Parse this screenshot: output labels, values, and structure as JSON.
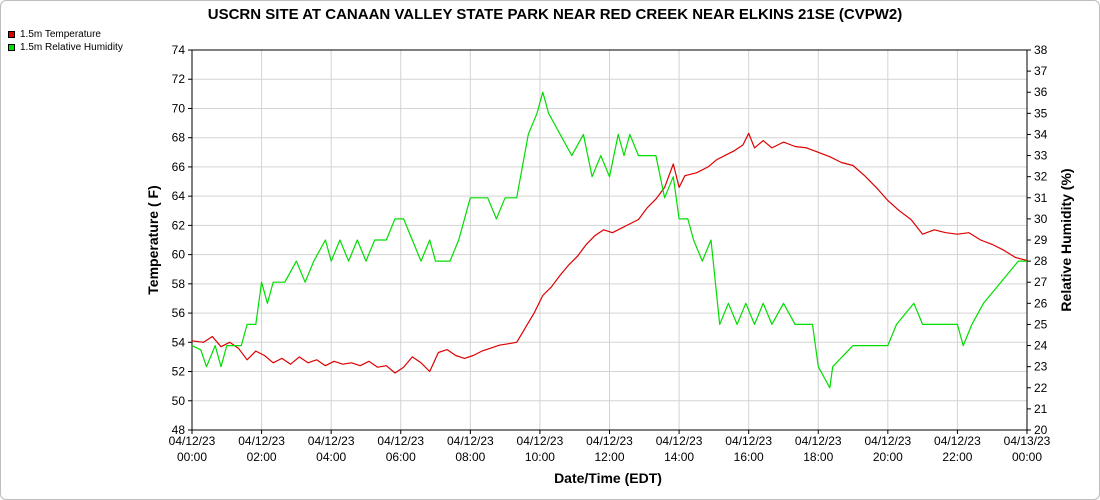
{
  "chart_data": {
    "type": "line",
    "title": "USCRN SITE AT CANAAN VALLEY STATE PARK NEAR RED CREEK NEAR ELKINS 21SE (CVPW2)",
    "xlabel": "Date/Time (EDT)",
    "ylabel": "Temperature ( F)",
    "ylabel_right": "Relative Humidity (%)",
    "xlim": [
      "04/12/23 00:00",
      "04/13/23 00:00"
    ],
    "ylim": [
      48,
      74
    ],
    "ylim_right": [
      20,
      38
    ],
    "grid": true,
    "legend_position": "top-left",
    "x_ticks": [
      {
        "date": "04/12/23",
        "time": "00:00"
      },
      {
        "date": "04/12/23",
        "time": "02:00"
      },
      {
        "date": "04/12/23",
        "time": "04:00"
      },
      {
        "date": "04/12/23",
        "time": "06:00"
      },
      {
        "date": "04/12/23",
        "time": "08:00"
      },
      {
        "date": "04/12/23",
        "time": "10:00"
      },
      {
        "date": "04/12/23",
        "time": "12:00"
      },
      {
        "date": "04/12/23",
        "time": "14:00"
      },
      {
        "date": "04/12/23",
        "time": "16:00"
      },
      {
        "date": "04/12/23",
        "time": "18:00"
      },
      {
        "date": "04/12/23",
        "time": "20:00"
      },
      {
        "date": "04/12/23",
        "time": "22:00"
      },
      {
        "date": "04/13/23",
        "time": "00:00"
      }
    ],
    "y_ticks_left": [
      48,
      50,
      52,
      54,
      56,
      58,
      60,
      62,
      64,
      66,
      68,
      70,
      72,
      74
    ],
    "y_ticks_right": [
      20,
      21,
      22,
      23,
      24,
      25,
      26,
      27,
      28,
      29,
      30,
      31,
      32,
      33,
      34,
      35,
      36,
      37,
      38
    ],
    "series": [
      {
        "name": "1.5m Temperature",
        "axis": "left",
        "color": "#dd0000",
        "points": [
          [
            "04/12/23 00:00",
            54.1
          ],
          [
            "04/12/23 00:20",
            54.0
          ],
          [
            "04/12/23 00:35",
            54.4
          ],
          [
            "04/12/23 00:50",
            53.7
          ],
          [
            "04/12/23 01:05",
            54.0
          ],
          [
            "04/12/23 01:20",
            53.6
          ],
          [
            "04/12/23 01:35",
            52.8
          ],
          [
            "04/12/23 01:50",
            53.4
          ],
          [
            "04/12/23 02:05",
            53.1
          ],
          [
            "04/12/23 02:20",
            52.6
          ],
          [
            "04/12/23 02:35",
            52.9
          ],
          [
            "04/12/23 02:50",
            52.5
          ],
          [
            "04/12/23 03:05",
            53.0
          ],
          [
            "04/12/23 03:20",
            52.6
          ],
          [
            "04/12/23 03:35",
            52.8
          ],
          [
            "04/12/23 03:50",
            52.4
          ],
          [
            "04/12/23 04:05",
            52.7
          ],
          [
            "04/12/23 04:20",
            52.5
          ],
          [
            "04/12/23 04:35",
            52.6
          ],
          [
            "04/12/23 04:50",
            52.4
          ],
          [
            "04/12/23 05:05",
            52.7
          ],
          [
            "04/12/23 05:20",
            52.3
          ],
          [
            "04/12/23 05:35",
            52.4
          ],
          [
            "04/12/23 05:50",
            51.9
          ],
          [
            "04/12/23 06:05",
            52.3
          ],
          [
            "04/12/23 06:20",
            53.0
          ],
          [
            "04/12/23 06:35",
            52.6
          ],
          [
            "04/12/23 06:50",
            52.0
          ],
          [
            "04/12/23 07:05",
            53.3
          ],
          [
            "04/12/23 07:20",
            53.5
          ],
          [
            "04/12/23 07:35",
            53.1
          ],
          [
            "04/12/23 07:50",
            52.9
          ],
          [
            "04/12/23 08:05",
            53.1
          ],
          [
            "04/12/23 08:20",
            53.4
          ],
          [
            "04/12/23 08:35",
            53.6
          ],
          [
            "04/12/23 08:50",
            53.8
          ],
          [
            "04/12/23 09:05",
            53.9
          ],
          [
            "04/12/23 09:20",
            54.0
          ],
          [
            "04/12/23 09:35",
            55.0
          ],
          [
            "04/12/23 09:50",
            56.0
          ],
          [
            "04/12/23 10:05",
            57.2
          ],
          [
            "04/12/23 10:20",
            57.8
          ],
          [
            "04/12/23 10:35",
            58.6
          ],
          [
            "04/12/23 10:50",
            59.3
          ],
          [
            "04/12/23 11:05",
            59.9
          ],
          [
            "04/12/23 11:20",
            60.7
          ],
          [
            "04/12/23 11:35",
            61.3
          ],
          [
            "04/12/23 11:50",
            61.7
          ],
          [
            "04/12/23 12:05",
            61.5
          ],
          [
            "04/12/23 12:20",
            61.8
          ],
          [
            "04/12/23 12:35",
            62.1
          ],
          [
            "04/12/23 12:50",
            62.4
          ],
          [
            "04/12/23 13:05",
            63.2
          ],
          [
            "04/12/23 13:20",
            63.8
          ],
          [
            "04/12/23 13:35",
            64.6
          ],
          [
            "04/12/23 13:50",
            66.2
          ],
          [
            "04/12/23 14:00",
            64.6
          ],
          [
            "04/12/23 14:10",
            65.4
          ],
          [
            "04/12/23 14:30",
            65.6
          ],
          [
            "04/12/23 14:50",
            66.0
          ],
          [
            "04/12/23 15:05",
            66.5
          ],
          [
            "04/12/23 15:20",
            66.8
          ],
          [
            "04/12/23 15:35",
            67.1
          ],
          [
            "04/12/23 15:50",
            67.5
          ],
          [
            "04/12/23 16:00",
            68.3
          ],
          [
            "04/12/23 16:10",
            67.3
          ],
          [
            "04/12/23 16:25",
            67.8
          ],
          [
            "04/12/23 16:40",
            67.3
          ],
          [
            "04/12/23 17:00",
            67.7
          ],
          [
            "04/12/23 17:20",
            67.4
          ],
          [
            "04/12/23 17:40",
            67.3
          ],
          [
            "04/12/23 18:00",
            67.0
          ],
          [
            "04/12/23 18:20",
            66.7
          ],
          [
            "04/12/23 18:40",
            66.3
          ],
          [
            "04/12/23 19:00",
            66.1
          ],
          [
            "04/12/23 19:20",
            65.4
          ],
          [
            "04/12/23 19:40",
            64.6
          ],
          [
            "04/12/23 20:00",
            63.7
          ],
          [
            "04/12/23 20:20",
            63.0
          ],
          [
            "04/12/23 20:40",
            62.4
          ],
          [
            "04/12/23 21:00",
            61.4
          ],
          [
            "04/12/23 21:20",
            61.7
          ],
          [
            "04/12/23 21:40",
            61.5
          ],
          [
            "04/12/23 22:00",
            61.4
          ],
          [
            "04/12/23 22:20",
            61.5
          ],
          [
            "04/12/23 22:40",
            61.0
          ],
          [
            "04/12/23 23:00",
            60.7
          ],
          [
            "04/12/23 23:20",
            60.3
          ],
          [
            "04/12/23 23:40",
            59.8
          ],
          [
            "04/13/23 00:00",
            59.6
          ]
        ]
      },
      {
        "name": "1.5m Relative Humidity",
        "axis": "right",
        "color": "#00dd00",
        "points": [
          [
            "04/12/23 00:00",
            24.0
          ],
          [
            "04/12/23 00:15",
            23.8
          ],
          [
            "04/12/23 00:25",
            23.0
          ],
          [
            "04/12/23 00:40",
            24.0
          ],
          [
            "04/12/23 00:50",
            23.0
          ],
          [
            "04/12/23 01:00",
            24.0
          ],
          [
            "04/12/23 01:25",
            24.0
          ],
          [
            "04/12/23 01:35",
            25.0
          ],
          [
            "04/12/23 01:50",
            25.0
          ],
          [
            "04/12/23 02:00",
            27.0
          ],
          [
            "04/12/23 02:10",
            26.0
          ],
          [
            "04/12/23 02:20",
            27.0
          ],
          [
            "04/12/23 02:40",
            27.0
          ],
          [
            "04/12/23 03:00",
            28.0
          ],
          [
            "04/12/23 03:15",
            27.0
          ],
          [
            "04/12/23 03:30",
            28.0
          ],
          [
            "04/12/23 03:50",
            29.0
          ],
          [
            "04/12/23 04:00",
            28.0
          ],
          [
            "04/12/23 04:15",
            29.0
          ],
          [
            "04/12/23 04:30",
            28.0
          ],
          [
            "04/12/23 04:45",
            29.0
          ],
          [
            "04/12/23 05:00",
            28.0
          ],
          [
            "04/12/23 05:15",
            29.0
          ],
          [
            "04/12/23 05:35",
            29.0
          ],
          [
            "04/12/23 05:50",
            30.0
          ],
          [
            "04/12/23 06:05",
            30.0
          ],
          [
            "04/12/23 06:20",
            29.0
          ],
          [
            "04/12/23 06:35",
            28.0
          ],
          [
            "04/12/23 06:50",
            29.0
          ],
          [
            "04/12/23 07:00",
            28.0
          ],
          [
            "04/12/23 07:25",
            28.0
          ],
          [
            "04/12/23 07:40",
            29.0
          ],
          [
            "04/12/23 08:00",
            31.0
          ],
          [
            "04/12/23 08:30",
            31.0
          ],
          [
            "04/12/23 08:45",
            30.0
          ],
          [
            "04/12/23 09:00",
            31.0
          ],
          [
            "04/12/23 09:20",
            31.0
          ],
          [
            "04/12/23 09:40",
            34.0
          ],
          [
            "04/12/23 09:55",
            35.0
          ],
          [
            "04/12/23 10:05",
            36.0
          ],
          [
            "04/12/23 10:15",
            35.0
          ],
          [
            "04/12/23 10:35",
            34.0
          ],
          [
            "04/12/23 10:55",
            33.0
          ],
          [
            "04/12/23 11:15",
            34.0
          ],
          [
            "04/12/23 11:30",
            32.0
          ],
          [
            "04/12/23 11:45",
            33.0
          ],
          [
            "04/12/23 12:00",
            32.0
          ],
          [
            "04/12/23 12:15",
            34.0
          ],
          [
            "04/12/23 12:25",
            33.0
          ],
          [
            "04/12/23 12:35",
            34.0
          ],
          [
            "04/12/23 12:50",
            33.0
          ],
          [
            "04/12/23 13:20",
            33.0
          ],
          [
            "04/12/23 13:35",
            31.0
          ],
          [
            "04/12/23 13:50",
            32.0
          ],
          [
            "04/12/23 14:00",
            30.0
          ],
          [
            "04/12/23 14:15",
            30.0
          ],
          [
            "04/12/23 14:25",
            29.0
          ],
          [
            "04/12/23 14:40",
            28.0
          ],
          [
            "04/12/23 14:55",
            29.0
          ],
          [
            "04/12/23 15:10",
            25.0
          ],
          [
            "04/12/23 15:25",
            26.0
          ],
          [
            "04/12/23 15:40",
            25.0
          ],
          [
            "04/12/23 15:55",
            26.0
          ],
          [
            "04/12/23 16:10",
            25.0
          ],
          [
            "04/12/23 16:25",
            26.0
          ],
          [
            "04/12/23 16:40",
            25.0
          ],
          [
            "04/12/23 17:00",
            26.0
          ],
          [
            "04/12/23 17:20",
            25.0
          ],
          [
            "04/12/23 17:50",
            25.0
          ],
          [
            "04/12/23 18:00",
            23.0
          ],
          [
            "04/12/23 18:20",
            22.0
          ],
          [
            "04/12/23 18:25",
            23.0
          ],
          [
            "04/12/23 19:00",
            24.0
          ],
          [
            "04/12/23 20:00",
            24.0
          ],
          [
            "04/12/23 20:15",
            25.0
          ],
          [
            "04/12/23 20:45",
            26.0
          ],
          [
            "04/12/23 21:00",
            25.0
          ],
          [
            "04/12/23 22:00",
            25.0
          ],
          [
            "04/12/23 22:10",
            24.0
          ],
          [
            "04/12/23 22:25",
            25.0
          ],
          [
            "04/12/23 22:45",
            26.0
          ],
          [
            "04/12/23 23:15",
            27.0
          ],
          [
            "04/12/23 23:45",
            28.0
          ],
          [
            "04/13/23 00:00",
            28.0
          ]
        ]
      }
    ]
  }
}
